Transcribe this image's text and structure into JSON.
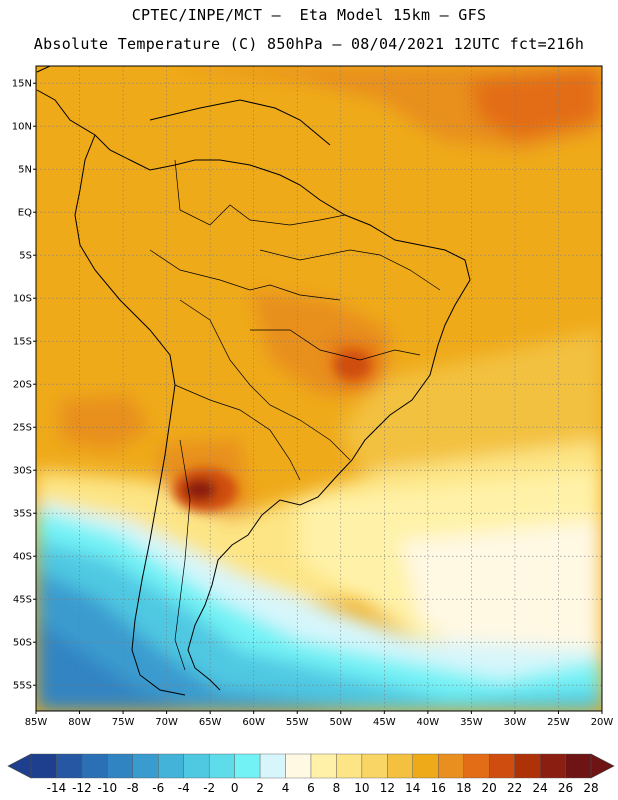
{
  "header": {
    "title_line1": "CPTEC/INPE/MCT –  Eta Model 15km – GFS",
    "title_line2": "Absolute Temperature (C) 850hPa – 08/04/2021 12UTC fct=216h"
  },
  "map": {
    "lon_range": [
      -85,
      -20
    ],
    "lat_range": [
      -58,
      17
    ],
    "lat_labels": [
      {
        "lat": 15,
        "label": "15N"
      },
      {
        "lat": 10,
        "label": "10N"
      },
      {
        "lat": 5,
        "label": "5N"
      },
      {
        "lat": 0,
        "label": "EQ"
      },
      {
        "lat": -5,
        "label": "5S"
      },
      {
        "lat": -10,
        "label": "10S"
      },
      {
        "lat": -15,
        "label": "15S"
      },
      {
        "lat": -20,
        "label": "20S"
      },
      {
        "lat": -25,
        "label": "25S"
      },
      {
        "lat": -30,
        "label": "30S"
      },
      {
        "lat": -35,
        "label": "35S"
      },
      {
        "lat": -40,
        "label": "40S"
      },
      {
        "lat": -45,
        "label": "45S"
      },
      {
        "lat": -50,
        "label": "50S"
      },
      {
        "lat": -55,
        "label": "55S"
      }
    ],
    "lon_labels": [
      {
        "lon": -85,
        "label": "85W"
      },
      {
        "lon": -80,
        "label": "80W"
      },
      {
        "lon": -75,
        "label": "75W"
      },
      {
        "lon": -70,
        "label": "70W"
      },
      {
        "lon": -65,
        "label": "65W"
      },
      {
        "lon": -60,
        "label": "60W"
      },
      {
        "lon": -55,
        "label": "55W"
      },
      {
        "lon": -50,
        "label": "50W"
      },
      {
        "lon": -45,
        "label": "45W"
      },
      {
        "lon": -40,
        "label": "40W"
      },
      {
        "lon": -35,
        "label": "35W"
      },
      {
        "lon": -30,
        "label": "30W"
      },
      {
        "lon": -25,
        "label": "25W"
      },
      {
        "lon": -20,
        "label": "20W"
      }
    ]
  },
  "colorbar": {
    "colors": [
      "#1d3f8e",
      "#2557a3",
      "#2b6fb5",
      "#3184c2",
      "#3a9bcf",
      "#44b3d9",
      "#4fc8e2",
      "#5fdcea",
      "#72f2f5",
      "#d7f6fb",
      "#fff8e3",
      "#fff2a8",
      "#fde585",
      "#f8d565",
      "#f3c13f",
      "#efaa1a",
      "#e88f1f",
      "#e36d16",
      "#cf4e0f",
      "#ad3207",
      "#8a1e10",
      "#6e1414"
    ],
    "labels": [
      "-14",
      "-12",
      "-10",
      "-8",
      "-6",
      "-4",
      "-2",
      "0",
      "2",
      "4",
      "6",
      "8",
      "10",
      "12",
      "14",
      "16",
      "18",
      "20",
      "22",
      "24",
      "26",
      "28"
    ],
    "left_arrow_color": "#1d3f8e",
    "right_arrow_color": "#6e1414"
  }
}
